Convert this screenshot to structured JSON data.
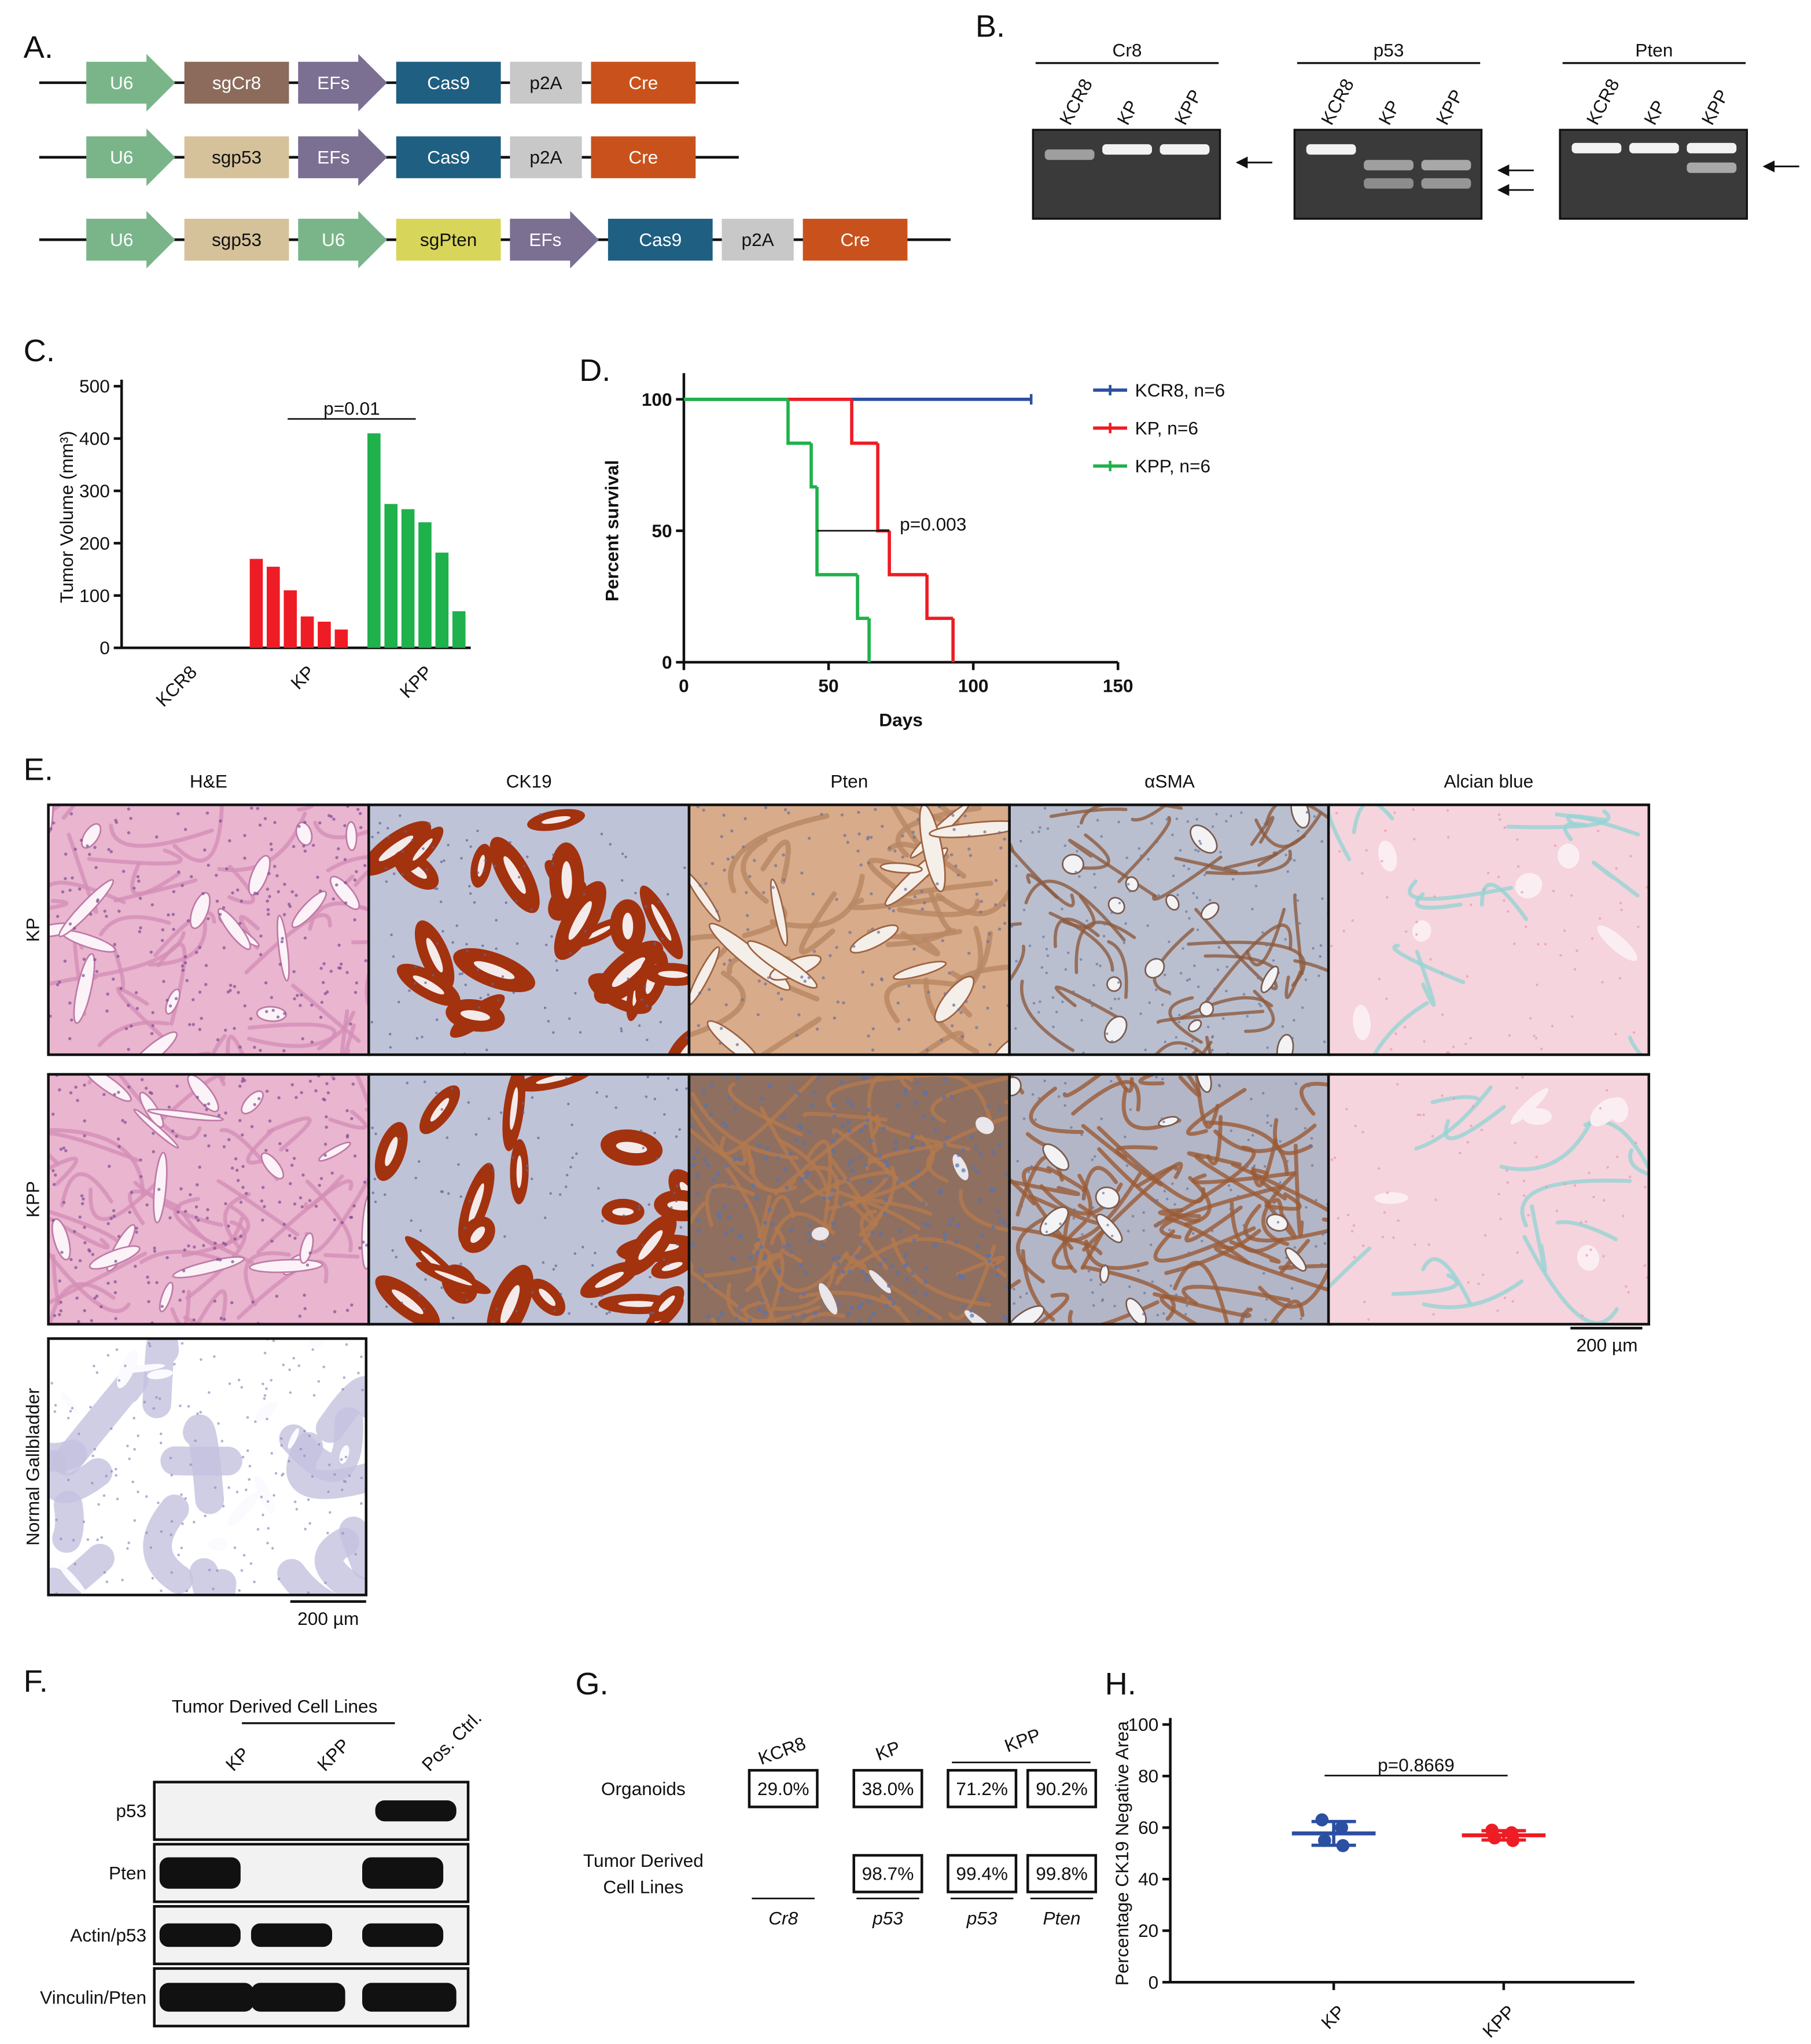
{
  "panel_a": {
    "label": "A.",
    "constructs": [
      [
        {
          "label": "U6",
          "shape": "arrow",
          "color": "#7ab58a"
        },
        {
          "label": "sgCr8",
          "shape": "box",
          "color": "#8c6b5c"
        },
        {
          "label": "EFs",
          "shape": "arrow",
          "color": "#7b6f92"
        },
        {
          "label": "Cas9",
          "shape": "box",
          "color": "#1f5f82"
        },
        {
          "label": "p2A",
          "shape": "tag",
          "color": "#c8c8c8"
        },
        {
          "label": "Cre",
          "shape": "box",
          "color": "#c9521c"
        }
      ],
      [
        {
          "label": "U6",
          "shape": "arrow",
          "color": "#7ab58a"
        },
        {
          "label": "sgp53",
          "shape": "box",
          "color": "#d6c29a"
        },
        {
          "label": "EFs",
          "shape": "arrow",
          "color": "#7b6f92"
        },
        {
          "label": "Cas9",
          "shape": "box",
          "color": "#1f5f82"
        },
        {
          "label": "p2A",
          "shape": "tag",
          "color": "#c8c8c8"
        },
        {
          "label": "Cre",
          "shape": "box",
          "color": "#c9521c"
        }
      ],
      [
        {
          "label": "U6",
          "shape": "arrow",
          "color": "#7ab58a"
        },
        {
          "label": "sgp53",
          "shape": "box",
          "color": "#d6c29a"
        },
        {
          "label": "U6",
          "shape": "arrow",
          "color": "#7ab58a"
        },
        {
          "label": "sgPten",
          "shape": "box",
          "color": "#d8d65a"
        },
        {
          "label": "EFs",
          "shape": "arrow",
          "color": "#7b6f92"
        },
        {
          "label": "Cas9",
          "shape": "box",
          "color": "#1f5f82"
        },
        {
          "label": "p2A",
          "shape": "tag",
          "color": "#c8c8c8"
        },
        {
          "label": "Cre",
          "shape": "box",
          "color": "#c9521c"
        }
      ]
    ]
  },
  "panel_b": {
    "label": "B.",
    "gels": [
      {
        "title": "Cr8",
        "lanes": [
          "KCR8",
          "KP",
          "KPP"
        ]
      },
      {
        "title": "p53",
        "lanes": [
          "KCR8",
          "KP",
          "KPP"
        ]
      },
      {
        "title": "Pten",
        "lanes": [
          "KCR8",
          "KP",
          "KPP"
        ]
      }
    ]
  },
  "chart_data": [
    {
      "label": "C.",
      "type": "bar",
      "ylabel": "Tumor Volume (mm³)",
      "ylim": [
        0,
        500
      ],
      "yticks": [
        0,
        100,
        200,
        300,
        400,
        500
      ],
      "groups": [
        {
          "name": "KCR8",
          "color": "#000000",
          "values": [
            0,
            0,
            0,
            0,
            0,
            0
          ]
        },
        {
          "name": "KP",
          "color": "#ee1c24",
          "values": [
            170,
            155,
            110,
            60,
            50,
            35
          ]
        },
        {
          "name": "KPP",
          "color": "#1fb14b",
          "values": [
            410,
            275,
            265,
            240,
            182,
            70
          ]
        }
      ],
      "annotation": "p=0.01"
    },
    {
      "label": "D.",
      "type": "line",
      "xlabel": "Days",
      "ylabel": "Percent survival",
      "xlim": [
        0,
        150
      ],
      "xticks": [
        0,
        50,
        100,
        150
      ],
      "ylim": [
        0,
        100
      ],
      "yticks": [
        0,
        50,
        100
      ],
      "series": [
        {
          "name": "KCR8, n=6",
          "color": "#2b4fa1",
          "x": [
            0,
            120
          ],
          "values": [
            100,
            100
          ]
        },
        {
          "name": "KP, n=6",
          "color": "#ee1c24",
          "x": [
            0,
            58,
            67,
            71,
            84,
            93
          ],
          "values": [
            100,
            83.3,
            50,
            33.3,
            16.7,
            0
          ]
        },
        {
          "name": "KPP, n=6",
          "color": "#1fb14b",
          "x": [
            0,
            36,
            44,
            46,
            60,
            64
          ],
          "values": [
            100,
            83.3,
            66.7,
            33.3,
            16.7,
            0
          ]
        }
      ],
      "annotation": {
        "text": "p=0.003",
        "x": [
          46,
          71
        ],
        "y": 50
      }
    },
    {
      "label": "H.",
      "type": "scatter",
      "ylabel": "Percentage CK19 Negative Area",
      "ylim": [
        0,
        100
      ],
      "yticks": [
        0,
        20,
        40,
        60,
        80,
        100
      ],
      "series": [
        {
          "name": "KP",
          "color": "#2b4fa1",
          "values": [
            63,
            60,
            55,
            53
          ],
          "mean": 57.75,
          "sd": 4.6
        },
        {
          "name": "KPP",
          "color": "#ee1c24",
          "values": [
            59,
            58,
            56,
            55
          ],
          "mean": 57,
          "sd": 1.8
        }
      ],
      "annotation": "p=0.8669"
    }
  ],
  "panel_e": {
    "label": "E.",
    "columns": [
      "H&E",
      "CK19",
      "Pten",
      "αSMA",
      "Alcian blue"
    ],
    "rows": [
      "KP",
      "KPP",
      "Normal Gallbladder"
    ],
    "scale_bars": [
      "200 µm",
      "200 µm"
    ]
  },
  "panel_f": {
    "label": "F.",
    "title": "Tumor Derived Cell Lines",
    "lanes": [
      "KP",
      "KPP",
      "Pos. Ctrl."
    ],
    "rows": [
      "p53",
      "Pten",
      "Actin/p53",
      "Vinculin/Pten"
    ]
  },
  "panel_g": {
    "label": "G.",
    "columns": [
      "KCR8",
      "KP",
      "KPP"
    ],
    "rows": [
      {
        "label": [
          "Organoids"
        ],
        "cells": [
          "29.0%",
          "38.0%",
          "71.2%",
          "90.2%"
        ]
      },
      {
        "label": [
          "Tumor Derived",
          "Cell Lines"
        ],
        "cells": [
          null,
          "98.7%",
          "99.4%",
          "99.8%"
        ]
      }
    ],
    "targets": [
      "Cr8",
      "p53",
      "p53",
      "Pten"
    ]
  }
}
